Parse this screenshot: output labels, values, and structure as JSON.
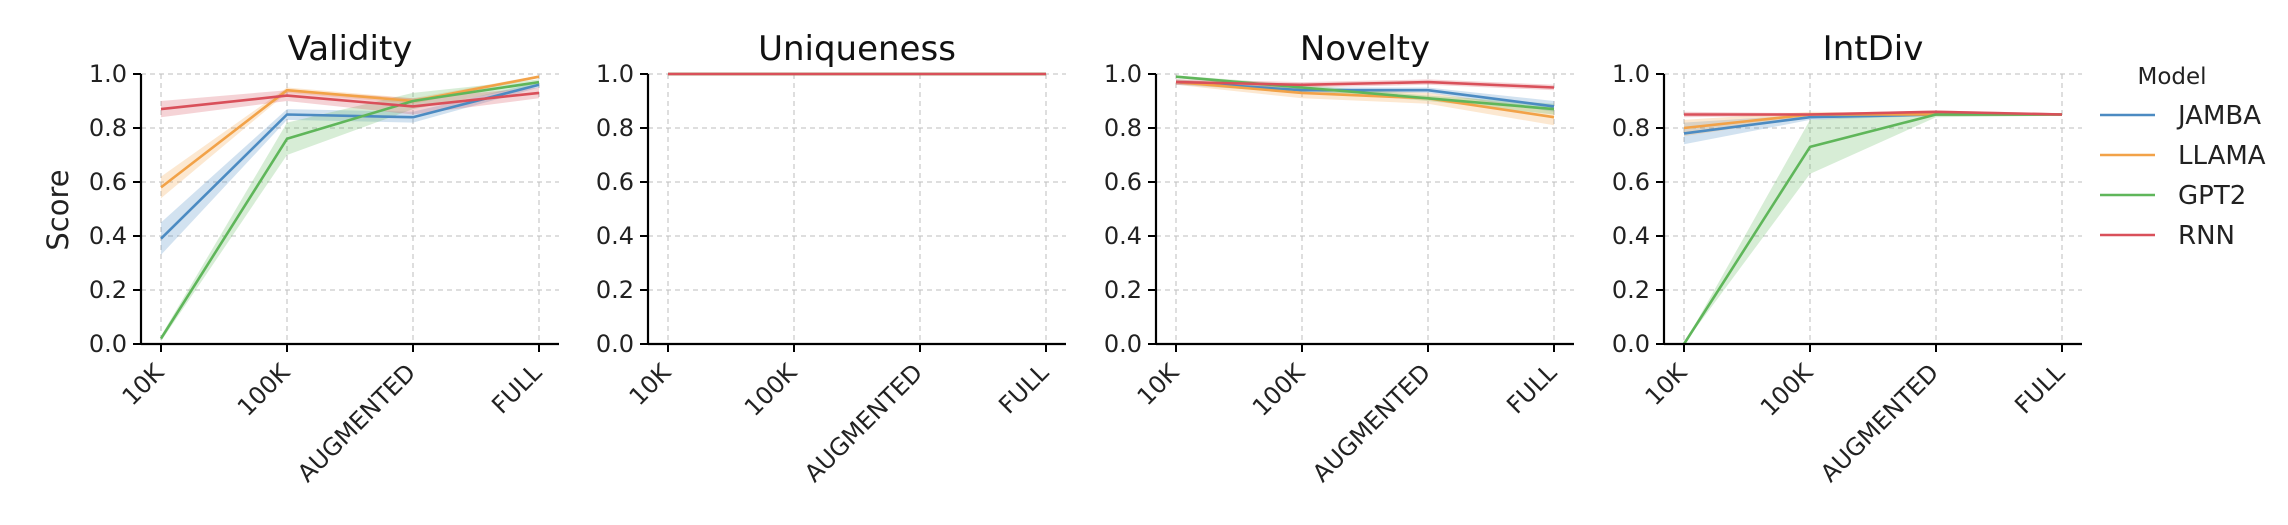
{
  "figure": {
    "ylabel": "Score",
    "legend_title": "Model"
  },
  "chart_data": [
    {
      "type": "line",
      "title": "Validity",
      "categories": [
        "10K",
        "100K",
        "AUGMENTED",
        "FULL"
      ],
      "ylim": [
        0,
        1.0
      ],
      "yticks": [
        "0.0",
        "0.2",
        "0.4",
        "0.6",
        "0.8",
        "1.0"
      ],
      "grid": true,
      "series": [
        {
          "name": "JAMBA",
          "values": [
            0.39,
            0.85,
            0.84,
            0.96
          ],
          "lower": [
            0.33,
            0.83,
            0.82,
            0.95
          ],
          "upper": [
            0.45,
            0.87,
            0.86,
            0.97
          ]
        },
        {
          "name": "LLAMA",
          "values": [
            0.58,
            0.94,
            0.9,
            0.99
          ],
          "lower": [
            0.54,
            0.93,
            0.89,
            0.985
          ],
          "upper": [
            0.62,
            0.95,
            0.91,
            0.995
          ]
        },
        {
          "name": "GPT2",
          "values": [
            0.02,
            0.76,
            0.9,
            0.97
          ],
          "lower": [
            0.01,
            0.7,
            0.87,
            0.96
          ],
          "upper": [
            0.03,
            0.82,
            0.93,
            0.98
          ]
        },
        {
          "name": "RNN",
          "values": [
            0.87,
            0.92,
            0.88,
            0.93
          ],
          "lower": [
            0.84,
            0.9,
            0.85,
            0.91
          ],
          "upper": [
            0.9,
            0.94,
            0.91,
            0.95
          ]
        }
      ]
    },
    {
      "type": "line",
      "title": "Uniqueness",
      "categories": [
        "10K",
        "100K",
        "AUGMENTED",
        "FULL"
      ],
      "ylim": [
        0,
        1.0
      ],
      "yticks": [
        "0.0",
        "0.2",
        "0.4",
        "0.6",
        "0.8",
        "1.0"
      ],
      "grid": true,
      "series": [
        {
          "name": "JAMBA",
          "values": [
            1.0,
            1.0,
            1.0,
            1.0
          ],
          "lower": [
            1.0,
            1.0,
            1.0,
            1.0
          ],
          "upper": [
            1.0,
            1.0,
            1.0,
            1.0
          ]
        },
        {
          "name": "LLAMA",
          "values": [
            1.0,
            1.0,
            1.0,
            1.0
          ],
          "lower": [
            1.0,
            1.0,
            1.0,
            1.0
          ],
          "upper": [
            1.0,
            1.0,
            1.0,
            1.0
          ]
        },
        {
          "name": "GPT2",
          "values": [
            1.0,
            1.0,
            1.0,
            1.0
          ],
          "lower": [
            1.0,
            1.0,
            1.0,
            1.0
          ],
          "upper": [
            1.0,
            1.0,
            1.0,
            1.0
          ]
        },
        {
          "name": "RNN",
          "values": [
            1.0,
            1.0,
            1.0,
            1.0
          ],
          "lower": [
            1.0,
            1.0,
            1.0,
            1.0
          ],
          "upper": [
            1.0,
            1.0,
            1.0,
            1.0
          ]
        }
      ]
    },
    {
      "type": "line",
      "title": "Novelty",
      "categories": [
        "10K",
        "100K",
        "AUGMENTED",
        "FULL"
      ],
      "ylim": [
        0,
        1.0
      ],
      "yticks": [
        "0.0",
        "0.2",
        "0.4",
        "0.6",
        "0.8",
        "1.0"
      ],
      "grid": true,
      "series": [
        {
          "name": "JAMBA",
          "values": [
            0.97,
            0.94,
            0.94,
            0.88
          ],
          "lower": [
            0.96,
            0.93,
            0.93,
            0.86
          ],
          "upper": [
            0.98,
            0.95,
            0.95,
            0.9
          ]
        },
        {
          "name": "LLAMA",
          "values": [
            0.97,
            0.93,
            0.91,
            0.84
          ],
          "lower": [
            0.96,
            0.91,
            0.89,
            0.81
          ],
          "upper": [
            0.98,
            0.95,
            0.93,
            0.87
          ]
        },
        {
          "name": "GPT2",
          "values": [
            0.99,
            0.95,
            0.91,
            0.87
          ],
          "lower": [
            0.985,
            0.94,
            0.9,
            0.85
          ],
          "upper": [
            0.995,
            0.96,
            0.92,
            0.89
          ]
        },
        {
          "name": "RNN",
          "values": [
            0.97,
            0.96,
            0.97,
            0.95
          ],
          "lower": [
            0.96,
            0.95,
            0.96,
            0.94
          ],
          "upper": [
            0.98,
            0.97,
            0.98,
            0.96
          ]
        }
      ]
    },
    {
      "type": "line",
      "title": "IntDiv",
      "categories": [
        "10K",
        "100K",
        "AUGMENTED",
        "FULL"
      ],
      "ylim": [
        0,
        1.0
      ],
      "yticks": [
        "0.0",
        "0.2",
        "0.4",
        "0.6",
        "0.8",
        "1.0"
      ],
      "grid": true,
      "series": [
        {
          "name": "JAMBA",
          "values": [
            0.78,
            0.84,
            0.85,
            0.85
          ],
          "lower": [
            0.74,
            0.83,
            0.845,
            0.845
          ],
          "upper": [
            0.82,
            0.85,
            0.855,
            0.855
          ]
        },
        {
          "name": "LLAMA",
          "values": [
            0.8,
            0.85,
            0.85,
            0.85
          ],
          "lower": [
            0.77,
            0.84,
            0.845,
            0.845
          ],
          "upper": [
            0.83,
            0.86,
            0.855,
            0.855
          ]
        },
        {
          "name": "GPT2",
          "values": [
            0.0,
            0.73,
            0.85,
            0.85
          ],
          "lower": [
            0.0,
            0.63,
            0.84,
            0.845
          ],
          "upper": [
            0.0,
            0.83,
            0.86,
            0.855
          ]
        },
        {
          "name": "RNN",
          "values": [
            0.85,
            0.85,
            0.86,
            0.85
          ],
          "lower": [
            0.84,
            0.845,
            0.855,
            0.845
          ],
          "upper": [
            0.86,
            0.855,
            0.865,
            0.855
          ]
        }
      ]
    }
  ],
  "legend": [
    {
      "name": "JAMBA",
      "color": "#4c8bc2"
    },
    {
      "name": "LLAMA",
      "color": "#f2a248"
    },
    {
      "name": "GPT2",
      "color": "#5fb65a"
    },
    {
      "name": "RNN",
      "color": "#d9505a"
    }
  ]
}
